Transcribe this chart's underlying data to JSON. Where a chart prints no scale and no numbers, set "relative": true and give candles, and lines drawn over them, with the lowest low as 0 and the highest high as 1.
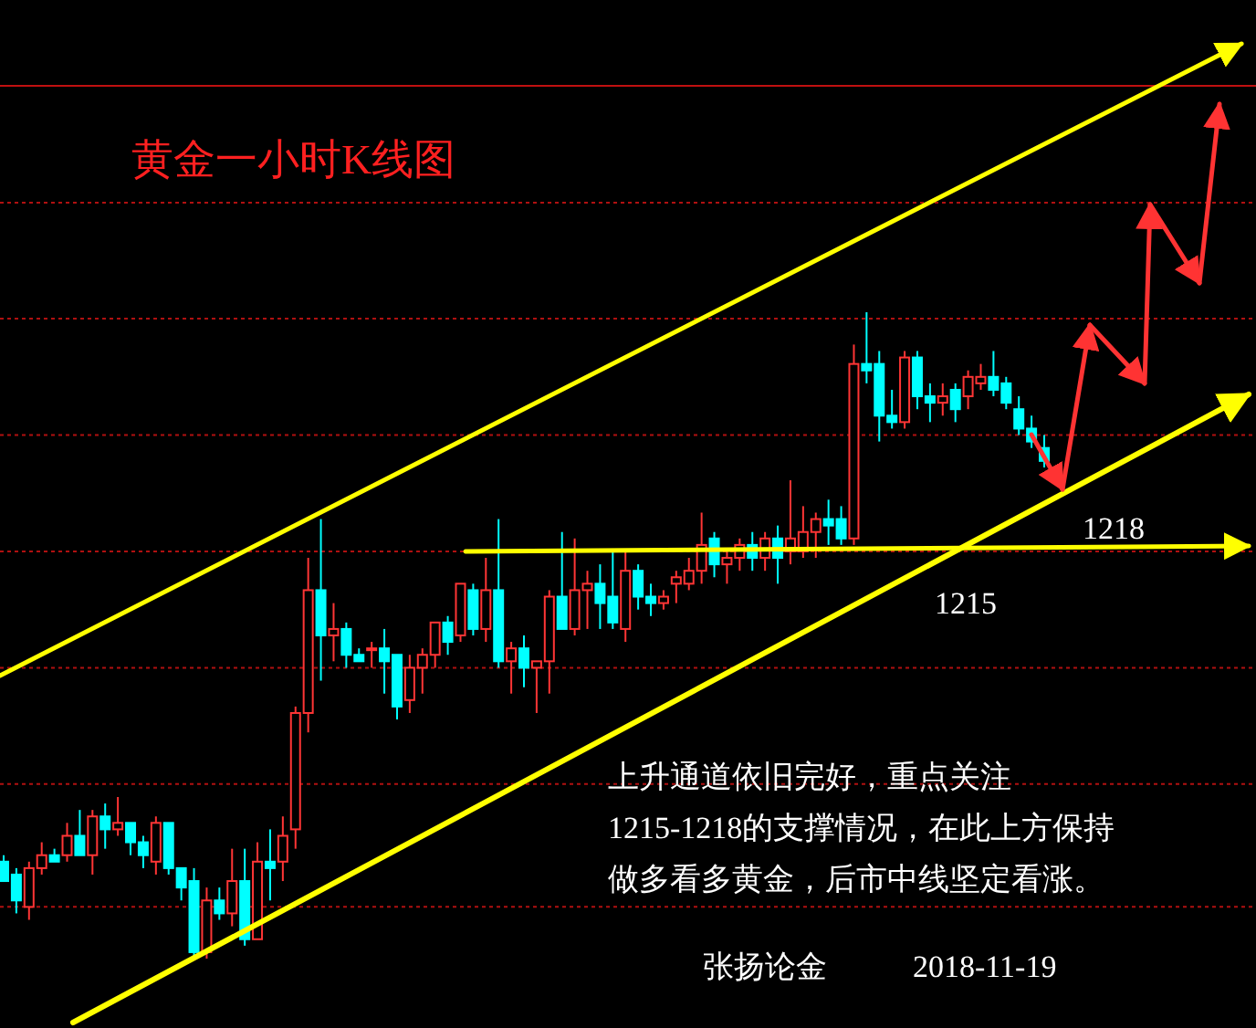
{
  "chart_data": {
    "type": "candlestick",
    "relative": true,
    "ref_lines": [
      {
        "axis": "y",
        "value": 0.99,
        "color": "#b01010",
        "line_style": "dotted"
      },
      {
        "axis": "y",
        "value": 0.81,
        "color": "#b01010",
        "line_style": "dotted"
      },
      {
        "axis": "y",
        "value": 0.63,
        "color": "#b01010",
        "line_style": "dotted"
      },
      {
        "axis": "y",
        "value": 0.45,
        "color": "#b01010",
        "line_style": "dotted"
      },
      {
        "axis": "y",
        "value": 0.27,
        "color": "#b01010",
        "line_style": "dotted"
      },
      {
        "axis": "y",
        "value": 0.08,
        "color": "#b01010",
        "line_style": "dotted"
      }
    ],
    "title": "黄金一小时K线图",
    "annotations": [
      "1218",
      "1215",
      "上升通道依旧完好，重点关注",
      "1215-1218的支撑情况，在此上方保持",
      "做多看多黄金，后市中线坚定看涨。",
      "张扬论金",
      "2018-11-19"
    ],
    "categories": [
      null,
      null,
      null,
      null,
      null,
      null,
      null,
      null,
      null,
      null,
      null,
      null,
      null,
      null,
      null,
      null,
      null,
      null,
      null,
      null,
      null,
      null,
      null,
      null,
      null,
      null,
      null,
      null,
      null,
      null,
      null,
      null,
      null,
      null,
      null,
      null,
      null,
      null,
      null,
      null,
      null,
      null,
      null,
      null,
      null,
      null,
      null,
      null,
      null,
      null,
      null,
      null,
      null,
      null,
      null,
      null,
      null,
      null,
      null,
      null,
      null,
      null,
      null,
      null,
      null,
      null,
      null,
      null,
      null,
      null,
      null,
      null,
      null,
      null,
      null,
      null,
      null,
      null,
      null,
      null,
      null,
      null,
      null
    ],
    "ohlc": [
      [
        0.15,
        0.16,
        0.12,
        0.12
      ],
      [
        0.13,
        0.14,
        0.07,
        0.09
      ],
      [
        0.08,
        0.15,
        0.06,
        0.14
      ],
      [
        0.14,
        0.18,
        0.13,
        0.16
      ],
      [
        0.16,
        0.17,
        0.15,
        0.15
      ],
      [
        0.16,
        0.21,
        0.15,
        0.19
      ],
      [
        0.19,
        0.23,
        0.16,
        0.16
      ],
      [
        0.16,
        0.23,
        0.13,
        0.22
      ],
      [
        0.22,
        0.24,
        0.17,
        0.2
      ],
      [
        0.2,
        0.25,
        0.19,
        0.21
      ],
      [
        0.21,
        0.21,
        0.16,
        0.18
      ],
      [
        0.18,
        0.19,
        0.14,
        0.16
      ],
      [
        0.15,
        0.22,
        0.13,
        0.21
      ],
      [
        0.21,
        0.21,
        0.13,
        0.14
      ],
      [
        0.14,
        0.14,
        0.09,
        0.11
      ],
      [
        0.12,
        0.14,
        0,
        0.01
      ],
      [
        0.01,
        0.11,
        0,
        0.09
      ],
      [
        0.09,
        0.11,
        0.06,
        0.07
      ],
      [
        0.07,
        0.17,
        0.05,
        0.12
      ],
      [
        0.12,
        0.17,
        0.02,
        0.03
      ],
      [
        0.03,
        0.18,
        0.03,
        0.15
      ],
      [
        0.15,
        0.2,
        0.09,
        0.14
      ],
      [
        0.15,
        0.22,
        0.12,
        0.19
      ],
      [
        0.2,
        0.39,
        0.17,
        0.38
      ],
      [
        0.38,
        0.62,
        0.35,
        0.57
      ],
      [
        0.57,
        0.68,
        0.43,
        0.5
      ],
      [
        0.5,
        0.55,
        0.46,
        0.51
      ],
      [
        0.51,
        0.52,
        0.45,
        0.47
      ],
      [
        0.47,
        0.48,
        0.46,
        0.46
      ],
      [
        0.48,
        0.49,
        0.45,
        0.48
      ],
      [
        0.48,
        0.51,
        0.41,
        0.46
      ],
      [
        0.47,
        0.47,
        0.37,
        0.39
      ],
      [
        0.4,
        0.47,
        0.38,
        0.45
      ],
      [
        0.45,
        0.48,
        0.41,
        0.47
      ],
      [
        0.47,
        0.52,
        0.45,
        0.52
      ],
      [
        0.52,
        0.53,
        0.47,
        0.49
      ],
      [
        0.5,
        0.58,
        0.49,
        0.58
      ],
      [
        0.57,
        0.58,
        0.5,
        0.51
      ],
      [
        0.51,
        0.62,
        0.49,
        0.57
      ],
      [
        0.57,
        0.68,
        0.45,
        0.46
      ],
      [
        0.46,
        0.49,
        0.41,
        0.48
      ],
      [
        0.48,
        0.5,
        0.42,
        0.45
      ],
      [
        0.45,
        0.46,
        0.38,
        0.46
      ],
      [
        0.46,
        0.57,
        0.41,
        0.56
      ],
      [
        0.56,
        0.66,
        0.51,
        0.51
      ],
      [
        0.51,
        0.65,
        0.5,
        0.57
      ],
      [
        0.57,
        0.6,
        0.51,
        0.58
      ],
      [
        0.58,
        0.61,
        0.51,
        0.55
      ],
      [
        0.56,
        0.63,
        0.51,
        0.52
      ],
      [
        0.51,
        0.63,
        0.49,
        0.6
      ],
      [
        0.6,
        0.61,
        0.54,
        0.56
      ],
      [
        0.56,
        0.58,
        0.53,
        0.55
      ],
      [
        0.55,
        0.57,
        0.54,
        0.56
      ],
      [
        0.58,
        0.6,
        0.55,
        0.59
      ],
      [
        0.58,
        0.62,
        0.57,
        0.6
      ],
      [
        0.6,
        0.69,
        0.58,
        0.64
      ],
      [
        0.65,
        0.66,
        0.59,
        0.61
      ],
      [
        0.61,
        0.63,
        0.58,
        0.62
      ],
      [
        0.62,
        0.65,
        0.6,
        0.64
      ],
      [
        0.64,
        0.66,
        0.6,
        0.62
      ],
      [
        0.62,
        0.66,
        0.6,
        0.65
      ],
      [
        0.65,
        0.67,
        0.58,
        0.62
      ],
      [
        0.63,
        0.74,
        0.61,
        0.65
      ],
      [
        0.63,
        0.7,
        0.62,
        0.66
      ],
      [
        0.66,
        0.69,
        0.62,
        0.68
      ],
      [
        0.68,
        0.71,
        0.64,
        0.67
      ],
      [
        0.68,
        0.7,
        0.64,
        0.65
      ],
      [
        0.65,
        0.95,
        0.64,
        0.92
      ],
      [
        0.92,
        1,
        0.89,
        0.91
      ],
      [
        0.92,
        0.94,
        0.8,
        0.84
      ],
      [
        0.84,
        0.88,
        0.82,
        0.83
      ],
      [
        0.83,
        0.94,
        0.82,
        0.93
      ],
      [
        0.93,
        0.94,
        0.85,
        0.87
      ],
      [
        0.87,
        0.89,
        0.83,
        0.86
      ],
      [
        0.86,
        0.89,
        0.84,
        0.87
      ],
      [
        0.88,
        0.89,
        0.83,
        0.85
      ],
      [
        0.87,
        0.91,
        0.85,
        0.9
      ],
      [
        0.89,
        0.92,
        0.88,
        0.9
      ],
      [
        0.9,
        0.94,
        0.87,
        0.88
      ],
      [
        0.89,
        0.9,
        0.85,
        0.86
      ],
      [
        0.85,
        0.87,
        0.81,
        0.82
      ],
      [
        0.82,
        0.84,
        0.79,
        0.8
      ],
      [
        0.79,
        0.81,
        0.76,
        0.77
      ]
    ]
  }
}
